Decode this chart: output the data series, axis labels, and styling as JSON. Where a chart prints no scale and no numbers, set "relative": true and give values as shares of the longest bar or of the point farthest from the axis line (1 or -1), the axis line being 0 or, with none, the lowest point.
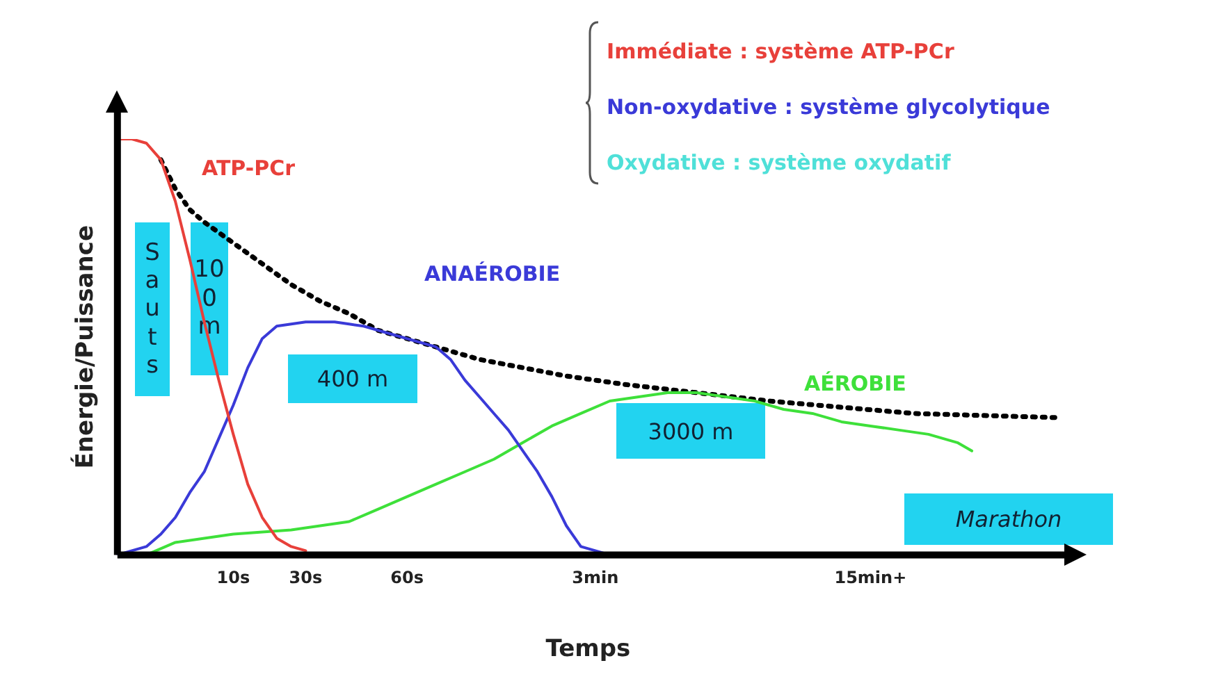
{
  "chart_data": {
    "type": "line",
    "relative": true,
    "xlabel": "Temps",
    "ylabel": "Énergie/Puissance",
    "marker": "none",
    "categories": [
      null,
      null,
      null,
      null,
      null,
      null,
      null,
      null,
      "10s",
      null,
      null,
      null,
      null,
      "30s",
      null,
      null,
      null,
      null,
      null,
      null,
      "60s",
      null,
      null,
      null,
      null,
      null,
      null,
      null,
      null,
      null,
      null,
      null,
      null,
      "3min",
      null,
      null,
      null,
      null,
      null,
      null,
      null,
      null,
      null,
      null,
      null,
      null,
      null,
      null,
      null,
      null,
      null,
      null,
      "15min+",
      null,
      null,
      null,
      null,
      null,
      null,
      null,
      null,
      null,
      null,
      null,
      null,
      null
    ],
    "series": [
      {
        "name": "ATP-PCr",
        "color": "#e8403a",
        "values": [
          1.0,
          1.0,
          0.99,
          0.95,
          0.85,
          0.71,
          0.56,
          0.42,
          0.29,
          0.17,
          0.09,
          0.04,
          0.02,
          0.01,
          null,
          null,
          null,
          null,
          null,
          null,
          null,
          null,
          null,
          null,
          null,
          null,
          null,
          null,
          null,
          null,
          null,
          null,
          null,
          null,
          null,
          null,
          null,
          null,
          null,
          null,
          null,
          null,
          null,
          null,
          null,
          null,
          null,
          null,
          null,
          null,
          null,
          null,
          null,
          null,
          null,
          null,
          null,
          null,
          null,
          null,
          null,
          null,
          null,
          null,
          null,
          null
        ]
      },
      {
        "name": "ANAÉROBIE",
        "color": "#3a3ad8",
        "values": [
          0,
          0.01,
          0.02,
          0.05,
          0.09,
          0.15,
          0.2,
          0.28,
          0.36,
          0.45,
          0.52,
          0.55,
          0.555,
          0.56,
          0.56,
          0.56,
          0.555,
          0.55,
          0.54,
          0.53,
          0.52,
          0.51,
          0.5,
          0.47,
          0.42,
          0.38,
          0.34,
          0.3,
          0.25,
          0.2,
          0.14,
          0.07,
          0.02,
          0.01,
          0,
          0,
          null,
          null,
          null,
          null,
          null,
          null,
          null,
          null,
          null,
          null,
          null,
          null,
          null,
          null,
          null,
          null,
          null,
          null,
          null,
          null,
          null,
          null,
          null,
          null,
          null,
          null,
          null,
          null,
          null,
          null
        ]
      },
      {
        "name": "AÉROBIE",
        "color": "#3ee03a",
        "values": [
          null,
          null,
          0,
          null,
          0.03,
          null,
          0.04,
          null,
          0.05,
          null,
          0.055,
          null,
          0.06,
          null,
          0.07,
          null,
          0.08,
          null,
          0.11,
          null,
          0.14,
          null,
          0.17,
          null,
          0.2,
          null,
          0.23,
          null,
          0.27,
          null,
          0.31,
          null,
          0.34,
          null,
          0.37,
          null,
          0.38,
          null,
          0.39,
          null,
          0.39,
          null,
          0.38,
          null,
          0.37,
          null,
          0.35,
          null,
          0.34,
          null,
          0.32,
          null,
          0.31,
          null,
          0.3,
          null,
          0.29,
          null,
          0.27,
          0.25,
          null,
          null,
          null,
          null,
          null,
          null
        ]
      },
      {
        "color": "#000000",
        "line_style": "dotted",
        "values": [
          null,
          null,
          null,
          0.95,
          0.88,
          0.83,
          0.8,
          null,
          0.75,
          null,
          0.7,
          null,
          0.65,
          null,
          0.61,
          null,
          0.58,
          null,
          0.54,
          null,
          0.52,
          null,
          0.5,
          null,
          null,
          0.47,
          null,
          null,
          0.45,
          null,
          null,
          0.43,
          null,
          null,
          null,
          0.41,
          null,
          null,
          null,
          null,
          0.39,
          null,
          null,
          null,
          null,
          0.37,
          null,
          null,
          null,
          null,
          0.355,
          null,
          null,
          null,
          null,
          0.34,
          null,
          null,
          null,
          null,
          0.335,
          null,
          null,
          null,
          null,
          0.33
        ]
      }
    ],
    "annotations": [
      "Immédiate : système ATP-PCr",
      "Non-oxydative : système glycolytique",
      "Oxydative : système oxydatif",
      "Sauts",
      "100 m",
      "400 m",
      "3000 m",
      "Marathon"
    ]
  }
}
